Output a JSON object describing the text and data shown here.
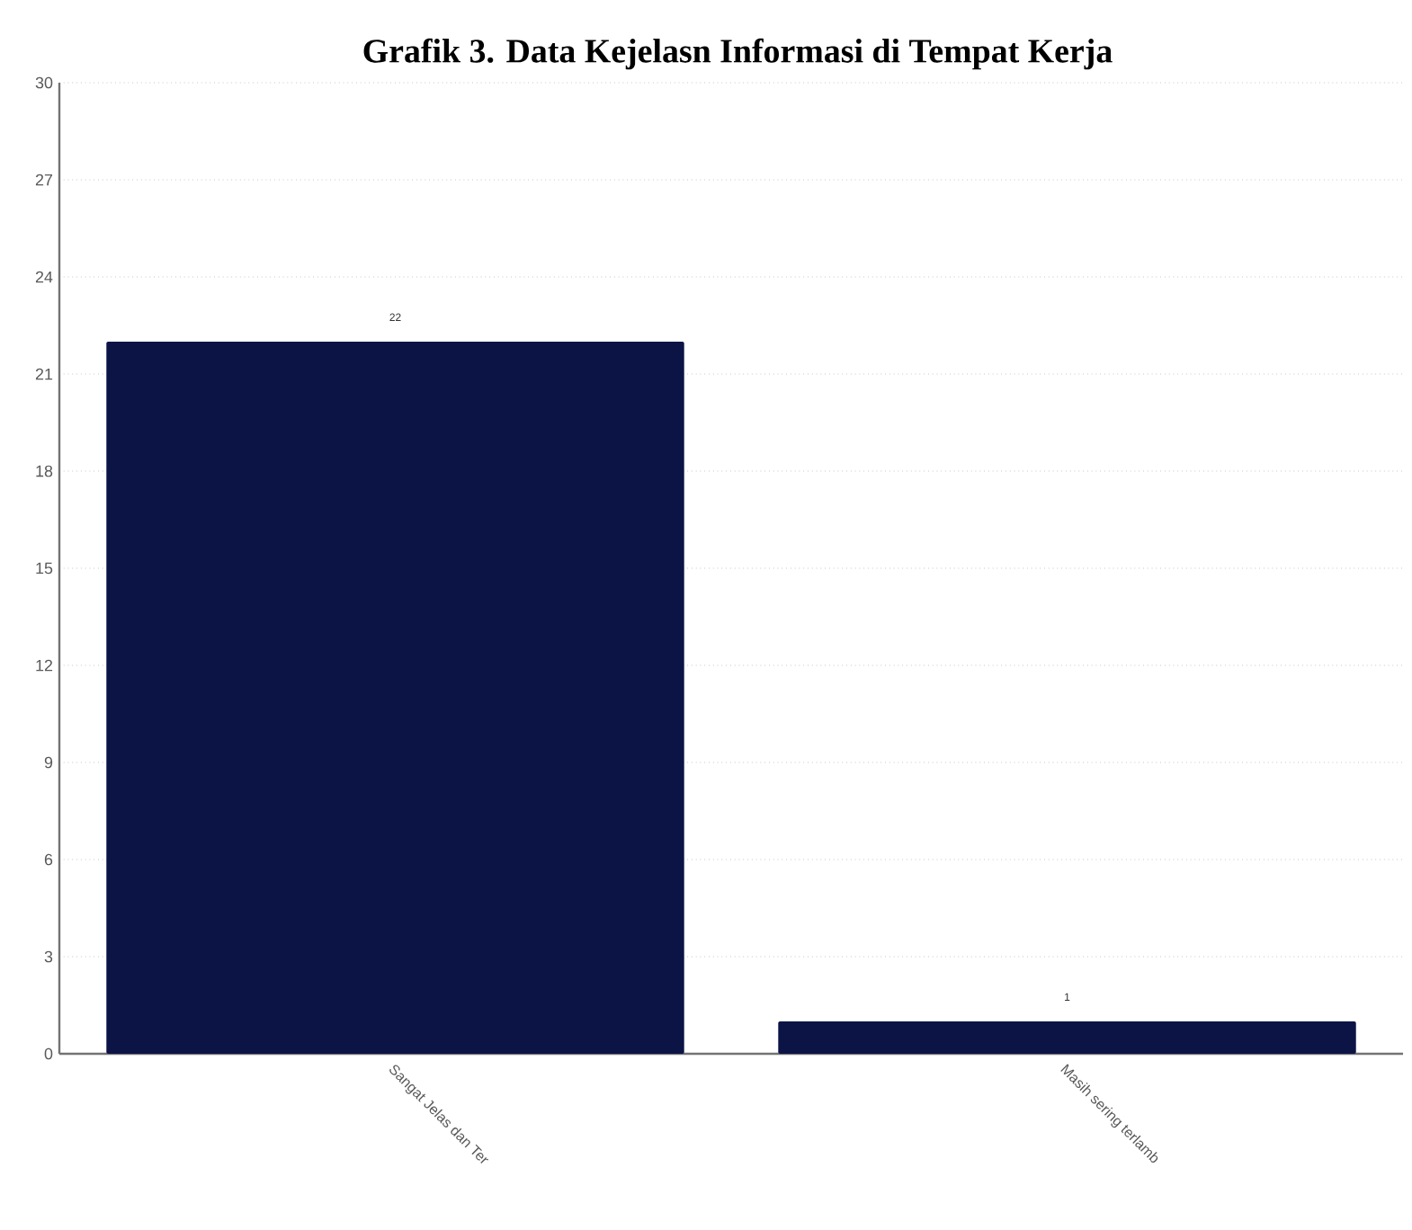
{
  "chart_data": {
    "type": "bar",
    "title": "Grafik 3. Data Kejelasn Informasi di Tempat Kerja",
    "categories": [
      "Sangat Jelas dan Ter",
      "Masih sering terlamb"
    ],
    "values": [
      22,
      1
    ],
    "color": "#0c1446",
    "ylim": [
      0,
      30
    ],
    "yticks": [
      0,
      3,
      6,
      9,
      12,
      15,
      18,
      21,
      24,
      27,
      30
    ],
    "grid": "y",
    "data_labels": true
  }
}
